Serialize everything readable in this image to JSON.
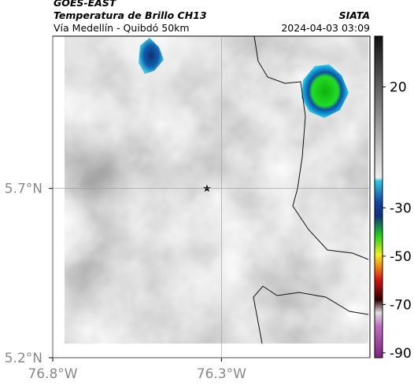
{
  "header": {
    "title": "GOES-EAST",
    "subtitle": "Temperatura de Brillo CH13",
    "route": "Vía Medellín - Quibdó 50km",
    "source": "SIATA",
    "timestamp": "2024-04-03 03:09"
  },
  "map": {
    "xlim": [
      -76.8,
      -75.86
    ],
    "ylim": [
      5.2,
      6.15
    ],
    "xticks": [
      {
        "value": -76.8,
        "label": "76.8°W"
      },
      {
        "value": -76.3,
        "label": "76.3°W"
      }
    ],
    "yticks": [
      {
        "value": 5.7,
        "label": "5.7°N"
      },
      {
        "value": 5.2,
        "label": "5.2°N"
      }
    ]
  },
  "colorbar": {
    "range": [
      -92,
      41
    ],
    "ticks": [
      20,
      -30,
      -50,
      -70,
      -90
    ]
  }
}
